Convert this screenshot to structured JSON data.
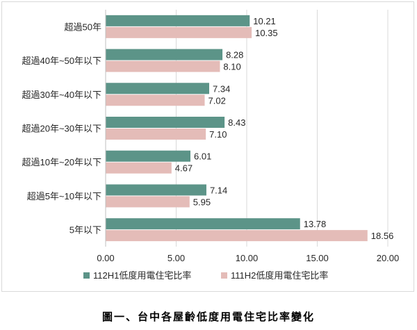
{
  "chart_data": {
    "type": "bar",
    "orientation": "horizontal",
    "categories": [
      "超過50年",
      "超過40年~50年以下",
      "超過30年~40年以下",
      "超過20年~30年以下",
      "超過10年~20年以下",
      "超過5年~10年以下",
      "5年以下"
    ],
    "series": [
      {
        "name": "112H1低度用電住宅比率",
        "values": [
          10.21,
          8.28,
          7.34,
          8.43,
          6.01,
          7.14,
          13.78
        ],
        "color": "#5c9488"
      },
      {
        "name": "111H2低度用電住宅比率",
        "values": [
          10.35,
          8.1,
          7.02,
          7.1,
          4.67,
          5.95,
          18.56
        ],
        "color": "#e4bcb8"
      }
    ],
    "x_ticks": [
      "0.00",
      "5.00",
      "10.00",
      "15.00",
      "20.00"
    ],
    "xlim": [
      0,
      20
    ],
    "grid": true,
    "legend_position": "bottom"
  },
  "caption": "圖一、台中各屋齡低度用電住宅比率變化"
}
